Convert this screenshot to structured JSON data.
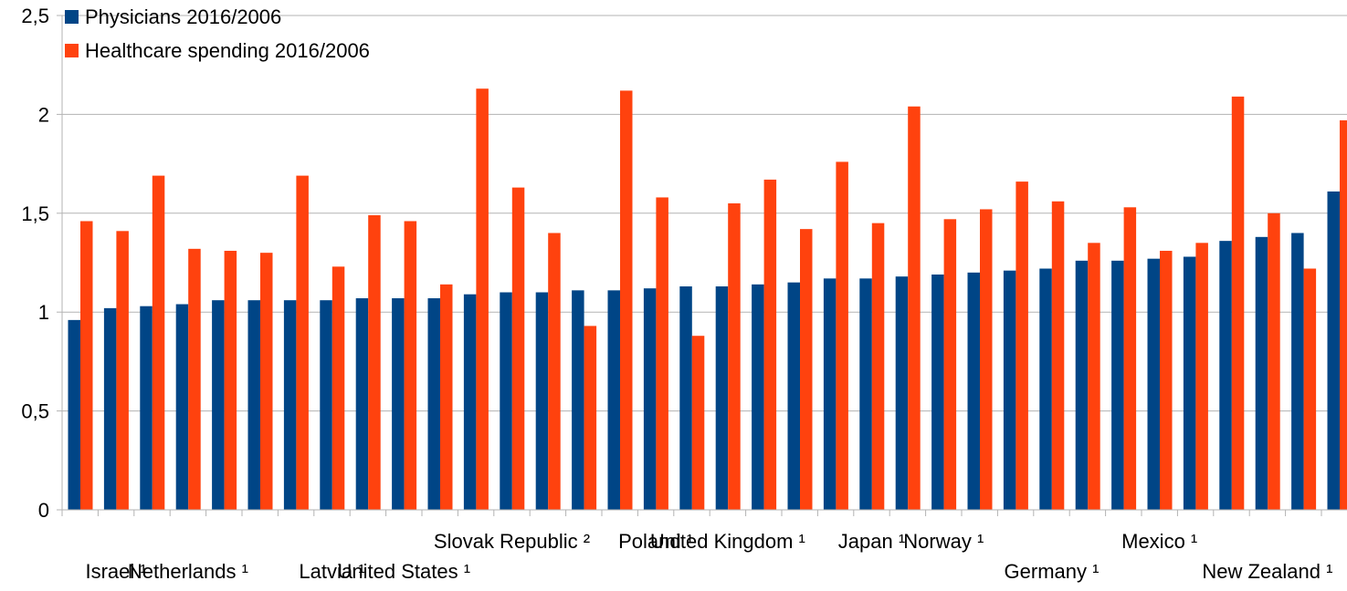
{
  "chart_data": {
    "type": "bar",
    "title": "",
    "xlabel": "",
    "ylabel": "",
    "ylim": [
      0,
      2.5
    ],
    "yticks": [
      "0",
      "0,5",
      "1",
      "1,5",
      "2",
      "2,5"
    ],
    "grid": true,
    "legend_position": "top-left",
    "categories": [
      "",
      "Israel ¹",
      "",
      "Netherlands ¹",
      "",
      "",
      "",
      "Latvia ¹",
      "",
      "United States ¹",
      "",
      "",
      "Slovak Republic ²",
      "",
      "",
      "",
      "Poland ¹",
      "",
      "United Kingdom ¹",
      "",
      "",
      "",
      "Japan ¹",
      "",
      "Norway ¹",
      "",
      "",
      "Germany ¹",
      "",
      "",
      "Mexico ¹",
      "",
      "",
      "New Zealand ¹",
      "",
      ""
    ],
    "series": [
      {
        "name": "Physicians 2016/2006",
        "color": "#004586",
        "values": [
          0.96,
          1.02,
          1.03,
          1.04,
          1.06,
          1.06,
          1.06,
          1.06,
          1.07,
          1.07,
          1.07,
          1.09,
          1.1,
          1.1,
          1.11,
          1.11,
          1.12,
          1.13,
          1.13,
          1.14,
          1.15,
          1.17,
          1.17,
          1.18,
          1.19,
          1.2,
          1.21,
          1.22,
          1.26,
          1.26,
          1.27,
          1.28,
          1.36,
          1.38,
          1.4,
          1.61
        ]
      },
      {
        "name": "Healthcare spending 2016/2006",
        "color": "#ff420e",
        "values": [
          1.46,
          1.41,
          1.69,
          1.32,
          1.31,
          1.3,
          1.69,
          1.23,
          1.49,
          1.46,
          1.14,
          2.13,
          1.63,
          1.4,
          0.93,
          2.12,
          1.58,
          0.88,
          1.55,
          1.67,
          1.42,
          1.76,
          1.45,
          2.04,
          1.47,
          1.52,
          1.66,
          1.56,
          1.35,
          1.53,
          1.31,
          1.35,
          2.09,
          1.5,
          1.22,
          1.97
        ]
      }
    ]
  }
}
